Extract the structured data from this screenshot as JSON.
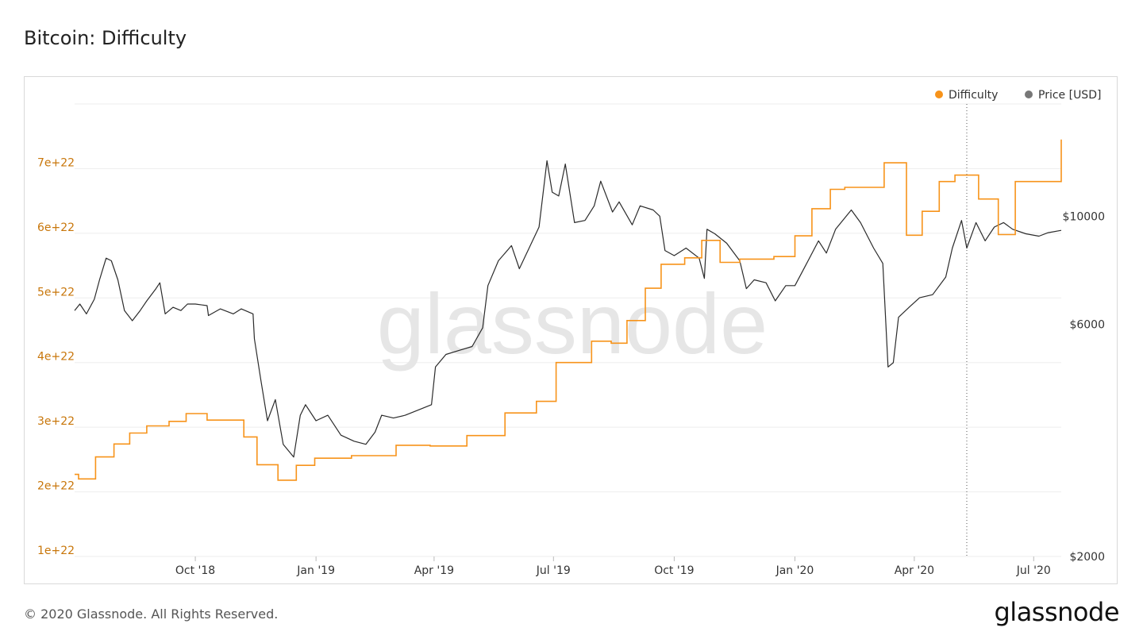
{
  "header": {
    "title": "Bitcoin: Difficulty"
  },
  "footer": {
    "copyright": "© 2020 Glassnode. All Rights Reserved.",
    "logo_text": "glassnode"
  },
  "watermark": "glassnode",
  "colors": {
    "difficulty": "#f7931a",
    "price": "#2b2b2b",
    "left_axis_text": "#c8760a",
    "grid": "#eeeeee"
  },
  "chart_data": {
    "type": "line",
    "title": "Bitcoin: Difficulty",
    "legend": [
      {
        "name": "Difficulty",
        "color": "#f7931a"
      },
      {
        "name": "Price [USD]",
        "color": "#777777"
      }
    ],
    "legend_position": "top-right",
    "grid": true,
    "x_range": [
      "2018-07-01",
      "2020-07-22"
    ],
    "x_ticks": [
      {
        "date": "2018-10-01",
        "label": "Oct '18"
      },
      {
        "date": "2019-01-01",
        "label": "Jan '19"
      },
      {
        "date": "2019-04-01",
        "label": "Apr '19"
      },
      {
        "date": "2019-07-01",
        "label": "Jul '19"
      },
      {
        "date": "2019-10-01",
        "label": "Oct '19"
      },
      {
        "date": "2020-01-01",
        "label": "Jan '20"
      },
      {
        "date": "2020-04-01",
        "label": "Apr '20"
      },
      {
        "date": "2020-07-01",
        "label": "Jul '20"
      }
    ],
    "y_left": {
      "range": [
        1e+22,
        8e+22
      ],
      "ticks": [
        {
          "value": 1e+22,
          "label": "1e+22"
        },
        {
          "value": 2e+22,
          "label": "2e+22"
        },
        {
          "value": 3e+22,
          "label": "3e+22"
        },
        {
          "value": 4e+22,
          "label": "4e+22"
        },
        {
          "value": 5e+22,
          "label": "5e+22"
        },
        {
          "value": 6e+22,
          "label": "6e+22"
        },
        {
          "value": 7e+22,
          "label": "7e+22"
        }
      ]
    },
    "y_right": {
      "scale": "log",
      "range": [
        2000,
        17000
      ],
      "ticks": [
        {
          "value": 2000,
          "label": "$2000"
        },
        {
          "value": 6000,
          "label": "$6000"
        },
        {
          "value": 10000,
          "label": "$10000"
        }
      ]
    },
    "marker_date": "2020-05-11",
    "series": [
      {
        "name": "Difficulty",
        "axis": "left",
        "step": true,
        "points": [
          [
            "2018-07-01",
            2.27e+22
          ],
          [
            "2018-07-04",
            2.2e+22
          ],
          [
            "2018-07-17",
            2.54e+22
          ],
          [
            "2018-07-31",
            2.74e+22
          ],
          [
            "2018-08-12",
            2.91e+22
          ],
          [
            "2018-08-25",
            3.02e+22
          ],
          [
            "2018-09-11",
            3.09e+22
          ],
          [
            "2018-09-24",
            3.21e+22
          ],
          [
            "2018-10-10",
            3.11e+22
          ],
          [
            "2018-11-07",
            2.85e+22
          ],
          [
            "2018-11-17",
            2.42e+22
          ],
          [
            "2018-12-03",
            2.18e+22
          ],
          [
            "2018-12-17",
            2.41e+22
          ],
          [
            "2018-12-31",
            2.52e+22
          ],
          [
            "2019-01-28",
            2.56e+22
          ],
          [
            "2019-03-03",
            2.72e+22
          ],
          [
            "2019-03-29",
            2.71e+22
          ],
          [
            "2019-04-26",
            2.87e+22
          ],
          [
            "2019-05-25",
            3.22e+22
          ],
          [
            "2019-06-18",
            3.4e+22
          ],
          [
            "2019-07-03",
            4e+22
          ],
          [
            "2019-07-30",
            4.33e+22
          ],
          [
            "2019-08-14",
            4.3e+22
          ],
          [
            "2019-08-26",
            4.65e+22
          ],
          [
            "2019-09-09",
            5.15e+22
          ],
          [
            "2019-09-21",
            5.52e+22
          ],
          [
            "2019-10-09",
            5.62e+22
          ],
          [
            "2019-10-22",
            5.89e+22
          ],
          [
            "2019-11-05",
            5.55e+22
          ],
          [
            "2019-11-20",
            5.6e+22
          ],
          [
            "2019-12-16",
            5.64e+22
          ],
          [
            "2020-01-01",
            5.96e+22
          ],
          [
            "2020-01-14",
            6.38e+22
          ],
          [
            "2020-01-28",
            6.68e+22
          ],
          [
            "2020-02-08",
            6.71e+22
          ],
          [
            "2020-03-09",
            7.09e+22
          ],
          [
            "2020-03-26",
            5.97e+22
          ],
          [
            "2020-04-07",
            6.34e+22
          ],
          [
            "2020-04-20",
            6.8e+22
          ],
          [
            "2020-05-02",
            6.9e+22
          ],
          [
            "2020-05-20",
            6.53e+22
          ],
          [
            "2020-06-04",
            5.98e+22
          ],
          [
            "2020-06-17",
            6.8e+22
          ],
          [
            "2020-07-22",
            7.45e+22
          ]
        ]
      },
      {
        "name": "Price [USD]",
        "axis": "right",
        "points": [
          [
            "2018-07-01",
            6400
          ],
          [
            "2018-07-05",
            6600
          ],
          [
            "2018-07-10",
            6300
          ],
          [
            "2018-07-16",
            6750
          ],
          [
            "2018-07-20",
            7400
          ],
          [
            "2018-07-25",
            8200
          ],
          [
            "2018-07-29",
            8100
          ],
          [
            "2018-08-03",
            7400
          ],
          [
            "2018-08-08",
            6400
          ],
          [
            "2018-08-14",
            6100
          ],
          [
            "2018-08-20",
            6400
          ],
          [
            "2018-08-25",
            6700
          ],
          [
            "2018-09-01",
            7100
          ],
          [
            "2018-09-04",
            7300
          ],
          [
            "2018-09-08",
            6300
          ],
          [
            "2018-09-14",
            6500
          ],
          [
            "2018-09-20",
            6400
          ],
          [
            "2018-09-25",
            6600
          ],
          [
            "2018-10-01",
            6600
          ],
          [
            "2018-10-10",
            6550
          ],
          [
            "2018-10-11",
            6250
          ],
          [
            "2018-10-20",
            6450
          ],
          [
            "2018-10-30",
            6300
          ],
          [
            "2018-11-05",
            6450
          ],
          [
            "2018-11-14",
            6300
          ],
          [
            "2018-11-15",
            5600
          ],
          [
            "2018-11-20",
            4600
          ],
          [
            "2018-11-25",
            3800
          ],
          [
            "2018-12-01",
            4200
          ],
          [
            "2018-12-07",
            3400
          ],
          [
            "2018-12-15",
            3200
          ],
          [
            "2018-12-20",
            3900
          ],
          [
            "2018-12-24",
            4100
          ],
          [
            "2019-01-01",
            3800
          ],
          [
            "2019-01-10",
            3900
          ],
          [
            "2019-01-20",
            3550
          ],
          [
            "2019-01-30",
            3450
          ],
          [
            "2019-02-08",
            3400
          ],
          [
            "2019-02-15",
            3600
          ],
          [
            "2019-02-20",
            3900
          ],
          [
            "2019-03-01",
            3850
          ],
          [
            "2019-03-10",
            3900
          ],
          [
            "2019-03-20",
            4000
          ],
          [
            "2019-03-30",
            4100
          ],
          [
            "2019-04-02",
            4900
          ],
          [
            "2019-04-10",
            5200
          ],
          [
            "2019-04-20",
            5300
          ],
          [
            "2019-04-30",
            5400
          ],
          [
            "2019-05-08",
            5900
          ],
          [
            "2019-05-12",
            7200
          ],
          [
            "2019-05-20",
            8100
          ],
          [
            "2019-05-30",
            8700
          ],
          [
            "2019-06-05",
            7800
          ],
          [
            "2019-06-15",
            8900
          ],
          [
            "2019-06-20",
            9500
          ],
          [
            "2019-06-26",
            13000
          ],
          [
            "2019-06-30",
            11200
          ],
          [
            "2019-07-05",
            11000
          ],
          [
            "2019-07-10",
            12800
          ],
          [
            "2019-07-17",
            9700
          ],
          [
            "2019-07-25",
            9800
          ],
          [
            "2019-08-01",
            10500
          ],
          [
            "2019-08-06",
            11800
          ],
          [
            "2019-08-15",
            10200
          ],
          [
            "2019-08-20",
            10700
          ],
          [
            "2019-08-30",
            9600
          ],
          [
            "2019-09-05",
            10500
          ],
          [
            "2019-09-15",
            10300
          ],
          [
            "2019-09-20",
            10000
          ],
          [
            "2019-09-24",
            8500
          ],
          [
            "2019-10-01",
            8300
          ],
          [
            "2019-10-10",
            8600
          ],
          [
            "2019-10-20",
            8200
          ],
          [
            "2019-10-24",
            7450
          ],
          [
            "2019-10-26",
            9400
          ],
          [
            "2019-11-01",
            9200
          ],
          [
            "2019-11-10",
            8800
          ],
          [
            "2019-11-20",
            8100
          ],
          [
            "2019-11-25",
            7100
          ],
          [
            "2019-12-01",
            7400
          ],
          [
            "2019-12-10",
            7300
          ],
          [
            "2019-12-17",
            6700
          ],
          [
            "2019-12-25",
            7200
          ],
          [
            "2020-01-01",
            7200
          ],
          [
            "2020-01-10",
            8000
          ],
          [
            "2020-01-19",
            8900
          ],
          [
            "2020-01-25",
            8400
          ],
          [
            "2020-02-01",
            9400
          ],
          [
            "2020-02-13",
            10300
          ],
          [
            "2020-02-20",
            9700
          ],
          [
            "2020-03-01",
            8600
          ],
          [
            "2020-03-08",
            8000
          ],
          [
            "2020-03-12",
            4900
          ],
          [
            "2020-03-16",
            5000
          ],
          [
            "2020-03-20",
            6200
          ],
          [
            "2020-03-28",
            6500
          ],
          [
            "2020-04-05",
            6800
          ],
          [
            "2020-04-15",
            6900
          ],
          [
            "2020-04-25",
            7500
          ],
          [
            "2020-04-30",
            8600
          ],
          [
            "2020-05-07",
            9800
          ],
          [
            "2020-05-11",
            8600
          ],
          [
            "2020-05-18",
            9700
          ],
          [
            "2020-05-25",
            8900
          ],
          [
            "2020-06-01",
            9500
          ],
          [
            "2020-06-08",
            9700
          ],
          [
            "2020-06-15",
            9400
          ],
          [
            "2020-06-25",
            9200
          ],
          [
            "2020-07-05",
            9100
          ],
          [
            "2020-07-12",
            9250
          ],
          [
            "2020-07-22",
            9350
          ]
        ]
      }
    ]
  }
}
